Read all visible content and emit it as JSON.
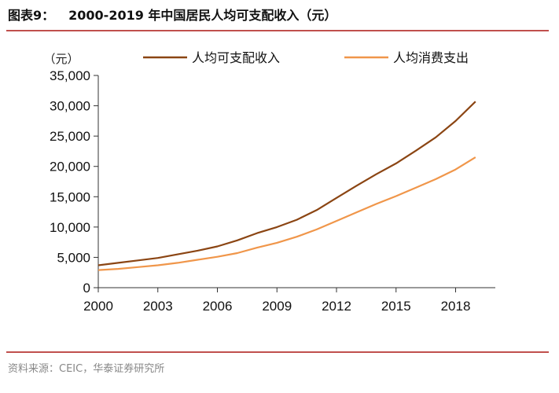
{
  "header": {
    "figure_label": "图表9：",
    "figure_title": "2000-2019 年中国居民人均可支配收入（元）"
  },
  "footer": {
    "source": "资料来源：CEIC，华泰证券研究所"
  },
  "colors": {
    "accent_rule": "#c0504d",
    "income_line": "#8b4513",
    "consumption_line": "#f0964a"
  },
  "chart_data": {
    "type": "line",
    "unit_label": "（元）",
    "x": [
      2000,
      2001,
      2002,
      2003,
      2004,
      2005,
      2006,
      2007,
      2008,
      2009,
      2010,
      2011,
      2012,
      2013,
      2014,
      2015,
      2016,
      2017,
      2018,
      2019
    ],
    "xticks": [
      2000,
      2003,
      2006,
      2009,
      2012,
      2015,
      2018
    ],
    "xlim": [
      2000,
      2020
    ],
    "yticks": [
      "0",
      "5,000",
      "10,000",
      "15,000",
      "20,000",
      "25,000",
      "30,000",
      "35,000"
    ],
    "ylim": [
      0,
      35000
    ],
    "series": [
      {
        "name": "人均可支配收入",
        "values": [
          3700,
          4100,
          4500,
          4900,
          5500,
          6100,
          6800,
          7800,
          9000,
          10000,
          11200,
          12800,
          14800,
          16800,
          18700,
          20500,
          22600,
          24800,
          27500,
          30700
        ]
      },
      {
        "name": "人均消费支出",
        "values": [
          2900,
          3100,
          3400,
          3700,
          4100,
          4600,
          5100,
          5700,
          6600,
          7400,
          8400,
          9600,
          11000,
          12400,
          13800,
          15100,
          16500,
          17900,
          19500,
          21500
        ]
      }
    ],
    "legend_position": "top",
    "grid": false
  }
}
